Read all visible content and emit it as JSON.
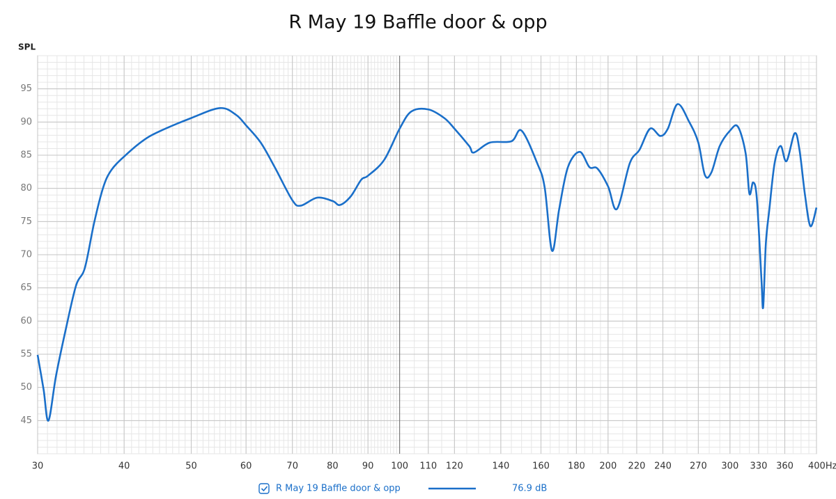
{
  "chart_data": {
    "type": "line",
    "title": "R May 19 Baffle door & opp",
    "y_label": "SPL",
    "log_x": true,
    "grid": true,
    "xlim": [
      30,
      400
    ],
    "ylim": [
      40,
      100
    ],
    "xticks": [
      30,
      40,
      50,
      60,
      70,
      80,
      90,
      100,
      110,
      120,
      140,
      160,
      180,
      200,
      220,
      240,
      270,
      300,
      330,
      360,
      {
        "value": 400,
        "label": "400Hz"
      }
    ],
    "yticks": [
      45,
      50,
      55,
      60,
      65,
      70,
      75,
      80,
      85,
      90,
      95
    ],
    "x": [
      30,
      30.6,
      31.1,
      31.9,
      33.0,
      34.1,
      35.1,
      36.2,
      37.3,
      38.3,
      40,
      42.6,
      45,
      50,
      55,
      58,
      60,
      63,
      66,
      70,
      72,
      76,
      80,
      82,
      85,
      88,
      90,
      95,
      100,
      104,
      110,
      116,
      120,
      126,
      128,
      135,
      145,
      150,
      158,
      162,
      166,
      170,
      175,
      182,
      188,
      193,
      200,
      206,
      215,
      222,
      230,
      238,
      244,
      252,
      262,
      270,
      276,
      282,
      290,
      300,
      308,
      316,
      320,
      324,
      328,
      333,
      335,
      338,
      342,
      348,
      355,
      362,
      372,
      378,
      385,
      392,
      400
    ],
    "series": [
      {
        "name": "R May 19 Baffle door & opp",
        "color": "#1a6fc9",
        "legend_value": "76.9 dB",
        "values": [
          54.9,
          49.7,
          45.0,
          51.8,
          59.1,
          65.4,
          68.0,
          74.8,
          80.1,
          82.7,
          84.8,
          87.2,
          88.6,
          90.6,
          92.1,
          91.1,
          89.5,
          86.9,
          83.2,
          78.2,
          77.4,
          78.6,
          78.1,
          77.5,
          78.8,
          81.3,
          81.9,
          84.3,
          89.0,
          91.6,
          91.9,
          90.6,
          89.0,
          86.4,
          85.4,
          86.9,
          87.1,
          88.7,
          83.8,
          80.1,
          70.6,
          76.9,
          83.2,
          85.5,
          83.2,
          83.0,
          80.3,
          76.9,
          83.8,
          85.8,
          89.0,
          87.9,
          89.0,
          92.7,
          90.0,
          86.9,
          82.0,
          82.4,
          86.4,
          88.7,
          89.3,
          85.3,
          79.2,
          80.9,
          78.5,
          66.5,
          62.1,
          71.7,
          76.9,
          83.8,
          86.4,
          84.1,
          88.3,
          85.8,
          79.0,
          74.3,
          77.1
        ]
      }
    ]
  }
}
